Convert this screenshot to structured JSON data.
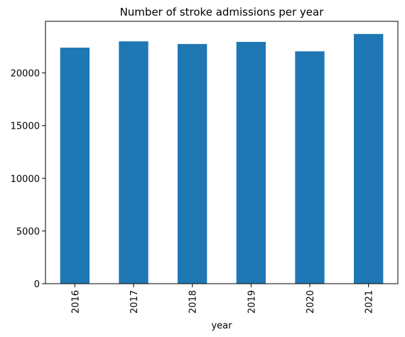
{
  "chart_data": {
    "type": "bar",
    "title": "Number of stroke admissions per year",
    "xlabel": "year",
    "ylabel": "",
    "categories": [
      "2016",
      "2017",
      "2018",
      "2019",
      "2020",
      "2021"
    ],
    "values": [
      22400,
      23000,
      22750,
      22950,
      22050,
      23700
    ],
    "ylim": [
      0,
      24900
    ],
    "yticks": [
      0,
      5000,
      10000,
      15000,
      20000
    ],
    "ytick_labels": [
      "0",
      "5000",
      "10000",
      "15000",
      "20000"
    ],
    "grid": false,
    "legend": "none",
    "bar_color": "#1f77b4"
  }
}
